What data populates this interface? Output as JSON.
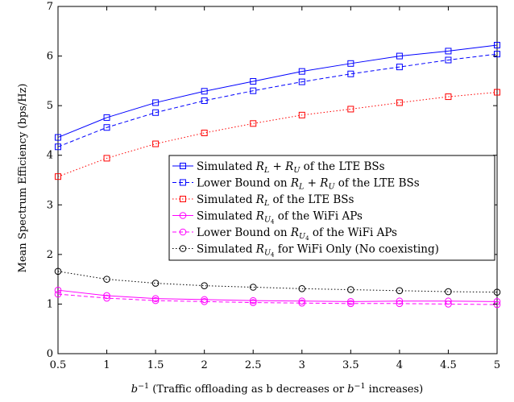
{
  "chart_data": {
    "type": "line",
    "title": "",
    "xlabel": "b⁻¹ (Traffic offloading as b decreases or b⁻¹ increases)",
    "ylabel": "Mean Spectrum Efficiency (bps/Hz)",
    "xlim": [
      0.5,
      5
    ],
    "ylim": [
      0,
      7
    ],
    "x_ticks": [
      "0.5",
      "1",
      "1.5",
      "2",
      "2.5",
      "3",
      "3.5",
      "4",
      "4.5",
      "5"
    ],
    "y_ticks": [
      "0",
      "1",
      "2",
      "3",
      "4",
      "5",
      "6",
      "7"
    ],
    "grid": false,
    "legend_position": "right",
    "x": [
      0.5,
      1,
      1.5,
      2,
      2.5,
      3,
      3.5,
      4,
      4.5,
      5
    ],
    "series": [
      {
        "name": "Simulated R_L + R_U of the LTE BSs",
        "legend_parts": [
          "Simulated ",
          "R",
          "L",
          " + ",
          "R",
          "U",
          " of the LTE BSs"
        ],
        "color": "#0000ff",
        "line": "solid",
        "marker": "square",
        "values": [
          4.36,
          4.76,
          5.06,
          5.29,
          5.49,
          5.69,
          5.85,
          6.0,
          6.1,
          6.22
        ]
      },
      {
        "name": "Lower Bound on R_L + R_U of the LTE BSs",
        "legend_parts": [
          "Lower Bound on ",
          "R",
          "L",
          " + ",
          "R",
          "U",
          " of the LTE BSs"
        ],
        "color": "#0000ff",
        "line": "dashed",
        "marker": "square",
        "values": [
          4.17,
          4.56,
          4.86,
          5.1,
          5.3,
          5.48,
          5.64,
          5.78,
          5.92,
          6.04
        ]
      },
      {
        "name": "Simulated R_L of the LTE BSs",
        "legend_parts": [
          "Simulated ",
          "R",
          "L",
          "",
          "",
          "",
          " of the LTE BSs"
        ],
        "color": "#ff0000",
        "line": "dotted",
        "marker": "square",
        "values": [
          3.57,
          3.94,
          4.23,
          4.45,
          4.64,
          4.81,
          4.93,
          5.06,
          5.18,
          5.27
        ]
      },
      {
        "name": "Simulated R_U4 of the WiFi APs",
        "legend_parts": [
          "Simulated ",
          "R",
          "U4",
          "",
          "",
          "",
          " of the WiFi APs"
        ],
        "color": "#ff00ff",
        "line": "solid",
        "marker": "circle",
        "values": [
          1.28,
          1.17,
          1.11,
          1.09,
          1.07,
          1.06,
          1.05,
          1.06,
          1.06,
          1.05
        ]
      },
      {
        "name": "Lower Bound on R_U4 of the WiFi APs",
        "legend_parts": [
          "Lower Bound on ",
          "R",
          "U4",
          "",
          "",
          "",
          " of the WiFi APs"
        ],
        "color": "#ff00ff",
        "line": "dashed",
        "marker": "circle",
        "values": [
          1.2,
          1.12,
          1.07,
          1.05,
          1.03,
          1.02,
          1.01,
          1.01,
          1.0,
          0.99
        ]
      },
      {
        "name": "Simulated R_U4 for WiFi Only (No coexisting)",
        "legend_parts": [
          "Simulated ",
          "R",
          "U4",
          "",
          "",
          "",
          " for WiFi Only (No coexisting)"
        ],
        "color": "#000000",
        "line": "dotted",
        "marker": "circle",
        "values": [
          1.66,
          1.5,
          1.42,
          1.37,
          1.34,
          1.31,
          1.29,
          1.27,
          1.25,
          1.24
        ]
      }
    ]
  }
}
